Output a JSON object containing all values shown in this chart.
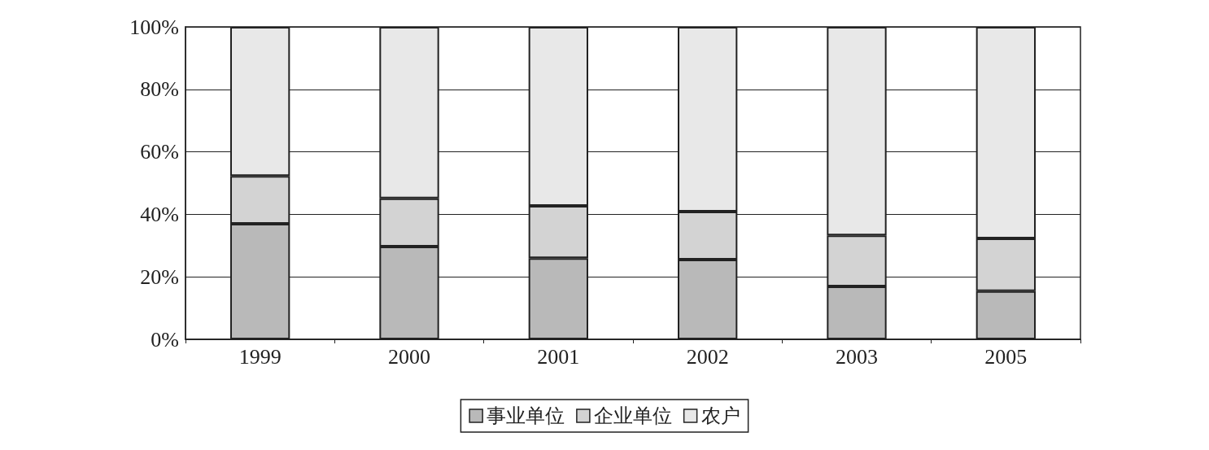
{
  "chart_data": {
    "type": "bar",
    "stacked": true,
    "categories": [
      "1999",
      "2000",
      "2001",
      "2002",
      "2003",
      "2005"
    ],
    "series": [
      {
        "name": "事业单位",
        "color": "#b9b9b9",
        "values": [
          37,
          29.7,
          26,
          25.5,
          16.9,
          15.4
        ]
      },
      {
        "name": "企业单位",
        "color": "#d3d3d3",
        "values": [
          15.3,
          15.4,
          16.7,
          15.4,
          16.4,
          16.9
        ]
      },
      {
        "name": "农户",
        "color": "#e8e8e8",
        "values": [
          47.7,
          54.9,
          57.3,
          59.1,
          66.7,
          67.7
        ]
      }
    ],
    "ylim": [
      0,
      100
    ],
    "yticks": [
      {
        "value": 0,
        "label": "0%"
      },
      {
        "value": 20,
        "label": "20%"
      },
      {
        "value": 40,
        "label": "40%"
      },
      {
        "value": 60,
        "label": "60%"
      },
      {
        "value": 80,
        "label": "80%"
      },
      {
        "value": 100,
        "label": "100%"
      }
    ],
    "grid": "y",
    "legend": "bottom"
  }
}
